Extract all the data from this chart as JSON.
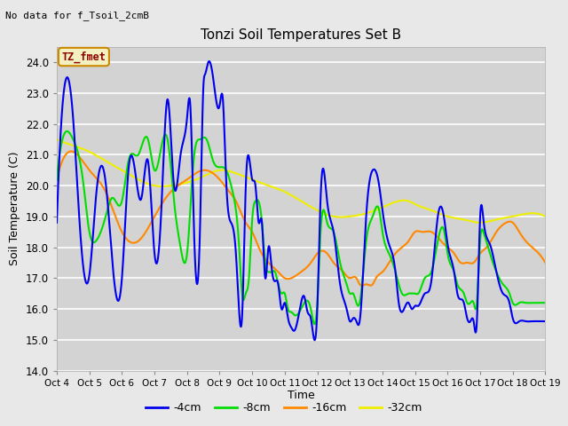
{
  "title": "Tonzi Soil Temperatures Set B",
  "no_data_label": "No data for f_Tsoil_2cmB",
  "tz_fmet_label": "TZ_fmet",
  "xlabel": "Time",
  "ylabel": "Soil Temperature (C)",
  "ylim": [
    14.0,
    24.5
  ],
  "yticks": [
    14.0,
    15.0,
    16.0,
    17.0,
    18.0,
    19.0,
    20.0,
    21.0,
    22.0,
    23.0,
    24.0
  ],
  "xtick_labels": [
    "Oct 4",
    "Oct 5",
    "Oct 6",
    "Oct 7",
    "Oct 8",
    "Oct 9",
    "Oct 10",
    "Oct 11",
    "Oct 12",
    "Oct 13",
    "Oct 14",
    "Oct 15",
    "Oct 16",
    "Oct 17",
    "Oct 18",
    "Oct 19"
  ],
  "bg_color": "#e8e8e8",
  "plot_bg_color": "#d3d3d3",
  "line_colors": {
    "-4cm": "#0000ee",
    "-8cm": "#00dd00",
    "-16cm": "#ff8800",
    "-32cm": "#eeee00"
  },
  "legend_entries": [
    "-4cm",
    "-8cm",
    "-16cm",
    "-32cm"
  ],
  "n_days": 15,
  "pts_per_day": 24
}
